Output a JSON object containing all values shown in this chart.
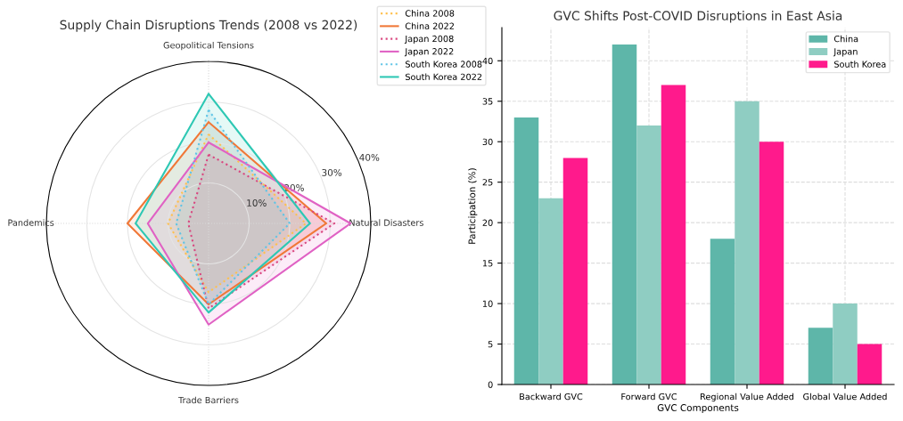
{
  "chart_data": [
    {
      "type": "radar",
      "title": "Supply Chain Disruptions Trends (2008 vs 2022)",
      "categories": [
        "Geopolitical Tensions",
        "Natural Disasters",
        "Trade Barriers",
        "Pandemics"
      ],
      "ylim": [
        0,
        40
      ],
      "yticks": [
        {
          "value": 10,
          "label": "10%"
        },
        {
          "value": 20,
          "label": "20%"
        },
        {
          "value": 30,
          "label": "30%"
        },
        {
          "value": 40,
          "label": "40%"
        }
      ],
      "grid": true,
      "legend": "top right",
      "marker": "none",
      "series": [
        {
          "name": "China 2008",
          "color": "#ffc04d",
          "line_style": "dotted",
          "values": [
            22,
            24,
            17,
            10
          ]
        },
        {
          "name": "China 2022",
          "color": "#f07838",
          "line_style": "solid",
          "values": [
            25,
            29,
            20,
            20
          ]
        },
        {
          "name": "Japan 2008",
          "color": "#d9467f",
          "line_style": "dotted",
          "values": [
            17,
            31,
            21,
            5
          ]
        },
        {
          "name": "Japan 2022",
          "color": "#e062c4",
          "line_style": "solid",
          "values": [
            20,
            35,
            25,
            15
          ]
        },
        {
          "name": "South Korea 2008",
          "color": "#5ec4e6",
          "line_style": "dotted",
          "values": [
            28,
            20,
            20,
            8
          ]
        },
        {
          "name": "South Korea 2022",
          "color": "#2ec8b4",
          "line_style": "solid",
          "values": [
            32,
            25,
            22,
            18
          ]
        }
      ]
    },
    {
      "type": "bar",
      "title": "GVC Shifts Post-COVID Disruptions in East Asia",
      "xlabel": "GVC Components",
      "ylabel": "Participation (%)",
      "categories": [
        "Backward GVC",
        "Forward GVC",
        "Regional Value Added",
        "Global Value Added"
      ],
      "ylim": [
        0,
        44.1
      ],
      "yticks": [
        0,
        5,
        10,
        15,
        20,
        25,
        30,
        35,
        40
      ],
      "grid": true,
      "legend": "top right",
      "series": [
        {
          "name": "China",
          "color": "#5eb6a9",
          "values": [
            33,
            42,
            18,
            7
          ]
        },
        {
          "name": "Japan",
          "color": "#8fcdc2",
          "values": [
            23,
            32,
            35,
            10
          ]
        },
        {
          "name": "South Korea",
          "color": "#ff1a8c",
          "values": [
            28,
            37,
            30,
            5
          ]
        }
      ]
    }
  ]
}
